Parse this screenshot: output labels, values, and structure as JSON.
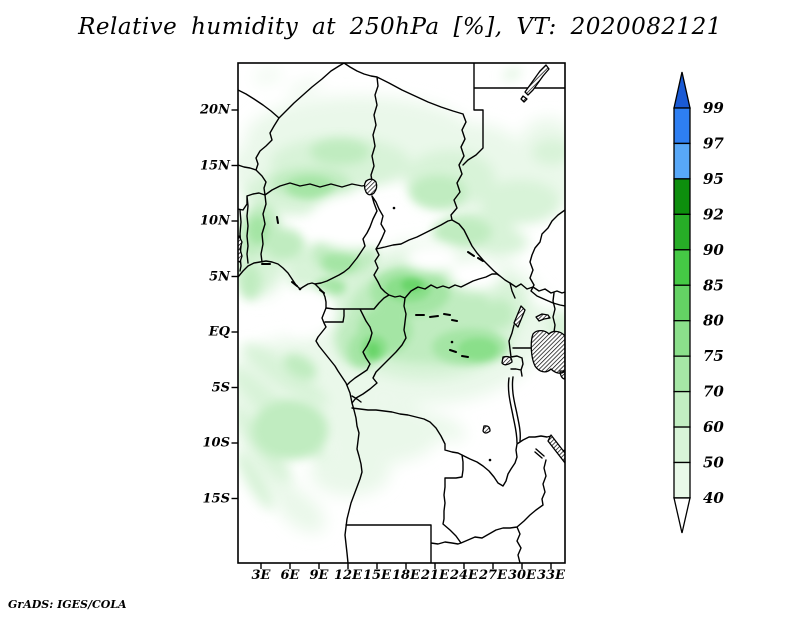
{
  "title": "Relative humidity at 250hPa [%], VT: 2020082121",
  "attribution": "GrADS: IGES/COLA",
  "axes": {
    "lat_labels": [
      "20N",
      "15N",
      "10N",
      "5N",
      "EQ",
      "5S",
      "10S",
      "15S"
    ],
    "lon_labels": [
      "3E",
      "6E",
      "9E",
      "12E",
      "15E",
      "18E",
      "21E",
      "24E",
      "27E",
      "30E",
      "33E"
    ]
  },
  "colorbar": {
    "tick_labels": [
      "99",
      "97",
      "95",
      "92",
      "90",
      "85",
      "80",
      "75",
      "70",
      "60",
      "50",
      "40"
    ],
    "segment_colors_top_to_bottom": [
      "#2e7ff2",
      "#58a8f8",
      "#0d8e0d",
      "#27ad27",
      "#45c945",
      "#64d264",
      "#8bdf8b",
      "#a6e7a6",
      "#c2eec2",
      "#d8f4d8",
      "#e9f9e9"
    ],
    "above_top_color": "#1a5ad4",
    "below_bottom_color": "#ffffff"
  },
  "chart_data": {
    "type": "heatmap",
    "title": "Relative humidity at 250hPa [%], VT: 2020082121",
    "variable": "Relative humidity",
    "pressure_level": "250hPa",
    "units": "%",
    "valid_time": "2020082121",
    "map_region": "Central Africa (Gulf of Guinea to East African lakes)",
    "x_axis": {
      "tick_labels": [
        "3E",
        "6E",
        "9E",
        "12E",
        "15E",
        "18E",
        "21E",
        "24E",
        "27E",
        "30E",
        "33E"
      ],
      "range": "approx 0.5E to 34.5E"
    },
    "y_axis": {
      "tick_labels": [
        "20N",
        "15N",
        "10N",
        "5N",
        "EQ",
        "5S",
        "10S",
        "15S"
      ],
      "range": "approx 21S to 24N"
    },
    "contour_levels": [
      40,
      50,
      60,
      70,
      75,
      80,
      85,
      90,
      92,
      95,
      97,
      99
    ],
    "palette": "white below 40, light-to-dark green 40-95, light-to-dark blue 95-99+",
    "legend_position": "right",
    "grid": false,
    "features": [
      "Broad pale 40-60% band across the Sahel between about 12N and 20N",
      "Moderate 60-75% patch over Benin, Togo and western Nigeria near 8-13N",
      "Strongest shading 75-85% over Cameroon, Gabon, Congo and the western Congo Basin near the equator",
      "Secondary 60-75% area southeast of the basin toward 20-27E, 2-6S",
      "Fan of light 40-60% streaks over the southeast Atlantic southwest of the Congo/Angola coast",
      "Light 40-60% shading over southern Sudan and near the South Sudan/Uganda border",
      "Mostly below 40% (white) over the Sahara corners, eastern Sudan, coastal Angola, Zambia and Tanzania"
    ]
  }
}
